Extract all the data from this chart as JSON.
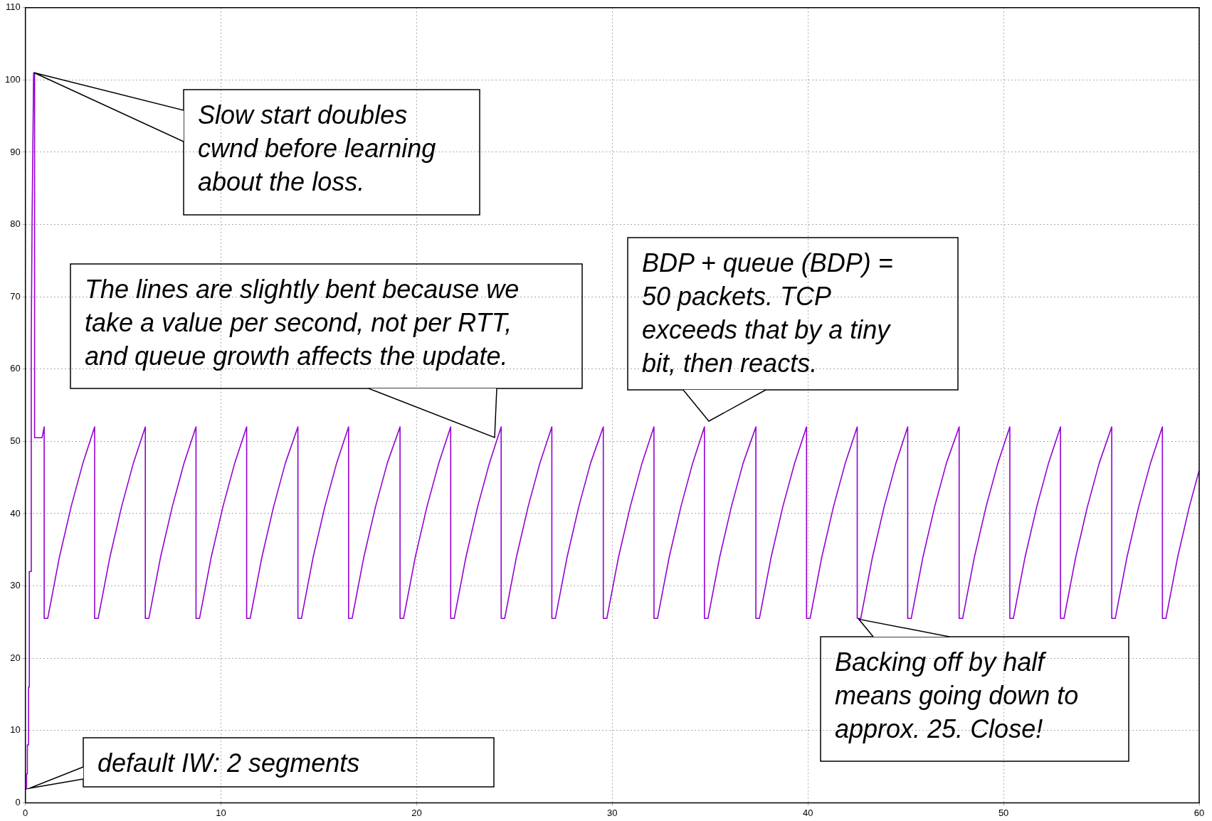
{
  "chart_data": {
    "type": "line",
    "color": "#9400d3",
    "marker": "none",
    "line_style": "solid",
    "grid": true,
    "legend": false,
    "xlim": [
      0,
      60
    ],
    "xticks": [
      0,
      10,
      20,
      30,
      40,
      50,
      60
    ],
    "ylim": [
      0,
      110
    ],
    "yticks": [
      0,
      10,
      20,
      30,
      40,
      50,
      60,
      70,
      80,
      90,
      100,
      110
    ],
    "x": [
      0,
      0.06,
      0.06,
      0.1,
      0.1,
      0.16,
      0.16,
      0.2,
      0.2,
      0.28,
      0.3,
      0.34,
      0.42,
      0.47,
      0.47,
      0.85,
      0.96,
      0.96,
      1.14,
      1.74,
      2.34,
      2.94,
      3.54,
      3.54,
      3.72,
      4.32,
      4.92,
      5.52,
      6.13,
      6.13,
      6.31,
      6.91,
      7.51,
      8.11,
      8.72,
      8.72,
      8.9,
      9.5,
      10.1,
      10.7,
      11.31,
      11.31,
      11.49,
      12.09,
      12.69,
      13.29,
      13.93,
      13.93,
      14.11,
      14.71,
      15.31,
      15.91,
      16.52,
      16.52,
      16.7,
      17.3,
      17.9,
      18.5,
      19.15,
      19.15,
      19.33,
      19.93,
      20.53,
      21.13,
      21.74,
      21.74,
      21.92,
      22.52,
      23.12,
      23.72,
      24.32,
      24.32,
      24.5,
      25.1,
      25.7,
      26.3,
      26.91,
      26.91,
      27.09,
      27.69,
      28.29,
      28.89,
      29.54,
      29.54,
      29.72,
      30.32,
      30.92,
      31.52,
      32.13,
      32.13,
      32.31,
      32.91,
      33.51,
      34.11,
      34.71,
      34.71,
      34.89,
      35.49,
      36.09,
      36.69,
      37.34,
      37.34,
      37.52,
      38.12,
      38.72,
      39.32,
      39.93,
      39.93,
      40.11,
      40.71,
      41.31,
      41.91,
      42.52,
      42.52,
      42.7,
      43.3,
      43.9,
      44.5,
      45.1,
      45.1,
      45.28,
      45.88,
      46.48,
      47.08,
      47.73,
      47.73,
      47.91,
      48.51,
      49.11,
      49.71,
      50.32,
      50.32,
      50.5,
      51.1,
      51.7,
      52.3,
      52.91,
      52.91,
      53.09,
      53.69,
      54.29,
      54.89,
      55.53,
      55.53,
      55.71,
      56.31,
      56.91,
      57.51,
      58.12,
      58.12,
      58.3,
      58.9,
      59.5,
      60
    ],
    "values": [
      2,
      2,
      4,
      4,
      8,
      8,
      16,
      16,
      32,
      32,
      64,
      80,
      101,
      101,
      50.5,
      50.5,
      52,
      25.5,
      25.5,
      34,
      41,
      47,
      52,
      25.5,
      25.5,
      34,
      41,
      47,
      52,
      25.5,
      25.5,
      34,
      41,
      47,
      52,
      25.5,
      25.5,
      34,
      41,
      47,
      52,
      25.5,
      25.5,
      34,
      41,
      47,
      52,
      25.5,
      25.5,
      34,
      41,
      47,
      52,
      25.5,
      25.5,
      34,
      41,
      47,
      52,
      25.5,
      25.5,
      34,
      41,
      47,
      52,
      25.5,
      25.5,
      34,
      41,
      47,
      52,
      25.5,
      25.5,
      34,
      41,
      47,
      52,
      25.5,
      25.5,
      34,
      41,
      47,
      52,
      25.5,
      25.5,
      34,
      41,
      47,
      52,
      25.5,
      25.5,
      34,
      41,
      47,
      52,
      25.5,
      25.5,
      34,
      41,
      47,
      52,
      25.5,
      25.5,
      34,
      41,
      47,
      52,
      25.5,
      25.5,
      34,
      41,
      47,
      52,
      25.5,
      25.5,
      34,
      41,
      47,
      52,
      25.5,
      25.5,
      34,
      41,
      47,
      52,
      25.5,
      25.5,
      34,
      41,
      47,
      52,
      25.5,
      25.5,
      34,
      41,
      47,
      52,
      25.5,
      25.5,
      34,
      41,
      47,
      52,
      25.5,
      25.5,
      34,
      41,
      47,
      52,
      25.5,
      25.5,
      34,
      41,
      46
    ],
    "annotations": [
      {
        "text": "Slow start doubles\ncwnd before learning\nabout the loss.",
        "x": 0.45,
        "y": 101
      },
      "The lines are slightly bent because we\ntake a value per second, not per RTT,\nand queue growth affects the update.",
      "BDP + queue (BDP) =\n50 packets. TCP\nexceeds that by a tiny\nbit, then reacts.",
      {
        "text": "Backing off by half\nmeans going down to\napprox. 25. Close!",
        "x": 42.6,
        "y": 25.4
      },
      {
        "text": "default IW: 2 segments",
        "x": 0.2,
        "y": 2
      }
    ]
  }
}
